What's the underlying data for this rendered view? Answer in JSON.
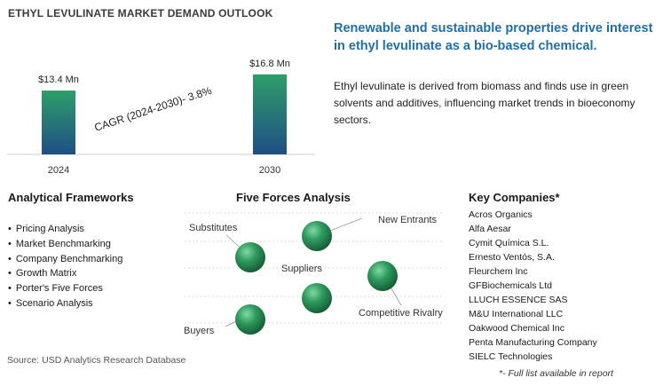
{
  "chart_data": {
    "type": "bar",
    "title": "ETHYL LEVULINATE MARKET DEMAND OUTLOOK",
    "categories": [
      "2024",
      "2030"
    ],
    "values": [
      13.4,
      16.8
    ],
    "data_labels": [
      "$13.4 Mn",
      "$16.8 Mn"
    ],
    "annotation": "CAGR (2024-2030)-  3.8%",
    "colors": {
      "bar_top": "#2e9e68",
      "bar_bottom": "#1f4e86"
    }
  },
  "headline": "Renewable and sustainable properties drive interest in ethyl levulinate as a bio-based chemical.",
  "description": "Ethyl levulinate is derived from biomass and finds use in green solvents and additives, influencing market trends in bioeconomy sectors.",
  "frameworks": {
    "title": "Analytical Frameworks",
    "items": [
      "Pricing Analysis",
      "Market Benchmarking",
      "Company Benchmarking",
      "Growth Matrix",
      "Porter's Five Forces",
      "Scenario Analysis"
    ]
  },
  "five_forces": {
    "title": "Five Forces Analysis",
    "labels": {
      "substitutes": "Substitutes",
      "new_entrants": "New Entrants",
      "suppliers": "Suppliers",
      "competitive_rivalry": "Competitive Rivalry",
      "buyers": "Buyers"
    }
  },
  "companies": {
    "title": "Key Companies*",
    "items": [
      "Acros Organics",
      "Alfa Aesar",
      "Cymit Química S.L.",
      "Ernesto Ventós, S.A.",
      "Fleurchem Inc",
      "GFBiochemicals Ltd",
      "LLUCH ESSENCE SAS",
      "M&U International LLC",
      "Oakwood Chemical Inc",
      "Penta Manufacturing Company",
      "SIELC Technologies"
    ],
    "note": "*- Full list available in report"
  },
  "source": "Source: USD Analytics Research Database"
}
